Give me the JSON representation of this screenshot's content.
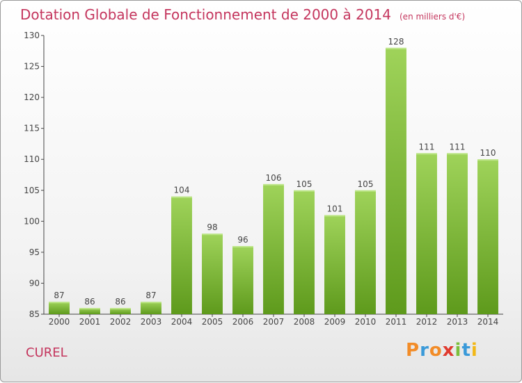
{
  "header": {
    "title": "Dotation Globale de Fonctionnement de 2000 à 2014",
    "subtitle": "(en milliers d'€)"
  },
  "footer": {
    "commune": "CUREL",
    "logo": "Proxiti"
  },
  "colors": {
    "title": "#c4355d",
    "bar_light": "#9fd35a",
    "bar_dark": "#5e9a1c",
    "axis": "#555555"
  },
  "chart_data": {
    "type": "bar",
    "title": "Dotation Globale de Fonctionnement de 2000 à 2014",
    "subtitle": "(en milliers d'€)",
    "xlabel": "",
    "ylabel": "",
    "categories": [
      "2000",
      "2001",
      "2002",
      "2003",
      "2004",
      "2005",
      "2006",
      "2007",
      "2008",
      "2009",
      "2010",
      "2011",
      "2012",
      "2013",
      "2014"
    ],
    "values": [
      87,
      86,
      86,
      87,
      104,
      98,
      96,
      106,
      105,
      101,
      105,
      128,
      111,
      111,
      110
    ],
    "ylim": [
      85,
      130
    ],
    "yticks": [
      85,
      90,
      95,
      100,
      105,
      110,
      115,
      120,
      125,
      130
    ],
    "grid": false,
    "legend": "none"
  }
}
